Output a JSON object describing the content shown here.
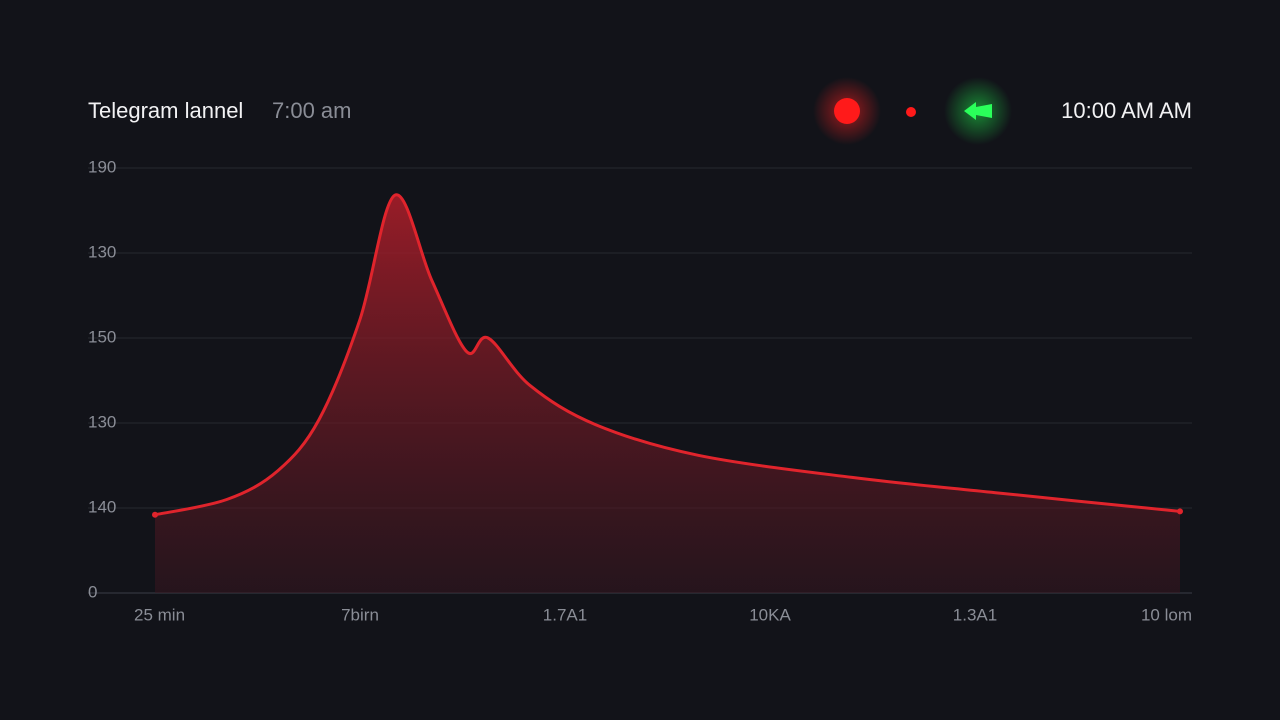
{
  "chart_data": {
    "type": "area",
    "title": "Telegram lannel",
    "subtitle": "7:00 am",
    "x": [
      0,
      7,
      12,
      16,
      20,
      23.4,
      27,
      30.4,
      32.5,
      36.6,
      43,
      53,
      68,
      82,
      100
    ],
    "series": [
      {
        "name": "Telegram lannel",
        "color": "#e0242c",
        "values": [
          46,
          55,
          72,
          102,
          161,
          234,
          184,
          142,
          150,
          122,
          99,
          81,
          68,
          59,
          48
        ]
      }
    ],
    "xlim": [
      0,
      100
    ],
    "xticks": [
      {
        "value": 0,
        "label": "25 min"
      },
      {
        "value": 20,
        "label": "7birn"
      },
      {
        "value": 40,
        "label": "1.7A1"
      },
      {
        "value": 60,
        "label": "10KA"
      },
      {
        "value": 80,
        "label": "1.3A1"
      },
      {
        "value": 100,
        "label": "10 lom"
      }
    ],
    "ylim": [
      0,
      250
    ],
    "yticks": [
      {
        "value": 250,
        "label": "190"
      },
      {
        "value": 200,
        "label": "130"
      },
      {
        "value": 150,
        "label": "150"
      },
      {
        "value": 100,
        "label": "130"
      },
      {
        "value": 50,
        "label": "140"
      },
      0
    ],
    "grid": true
  },
  "status": {
    "time": "10:00 AM AM"
  }
}
